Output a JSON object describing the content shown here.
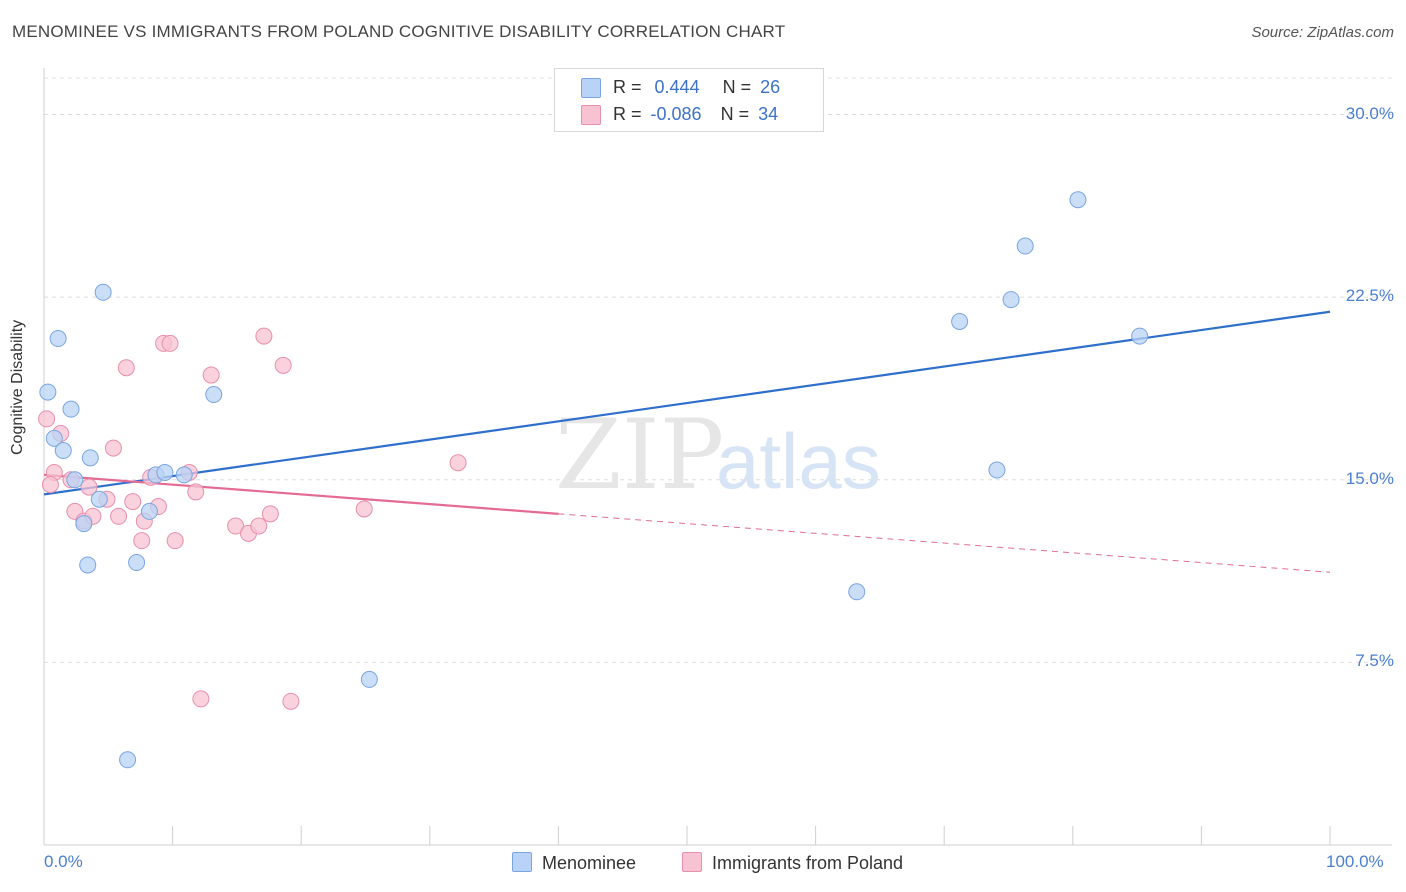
{
  "title": "MENOMINEE VS IMMIGRANTS FROM POLAND COGNITIVE DISABILITY CORRELATION CHART",
  "source": "Source: ZipAtlas.com",
  "watermark": {
    "zip": "ZIP",
    "atlas": "atlas"
  },
  "colors": {
    "blue_fill": "#b8d3f5",
    "blue_stroke": "#7aa5e0",
    "blue_line": "#2f6fcc",
    "pink_fill": "#f7c3d3",
    "pink_stroke": "#e88fad",
    "pink_line": "#e46b93",
    "tick_text": "#4a7fd0"
  },
  "legend": {
    "rows": [
      {
        "r_label": "R =",
        "r_value": "0.444",
        "n_label": "N =",
        "n_value": "26"
      },
      {
        "r_label": "R =",
        "r_value": "-0.086",
        "n_label": "N =",
        "n_value": "34"
      }
    ]
  },
  "bottom_legend": {
    "series1": "Menominee",
    "series2": "Immigrants from Poland"
  },
  "chart_data": {
    "type": "scatter",
    "title": "MENOMINEE VS IMMIGRANTS FROM POLAND COGNITIVE DISABILITY CORRELATION CHART",
    "xlabel": "",
    "ylabel": "Cognitive Disability",
    "xlim": [
      0,
      100
    ],
    "ylim": [
      0,
      31.5
    ],
    "x_tick_labels": [
      "0.0%",
      "100.0%"
    ],
    "y_ticks": [
      7.5,
      15.0,
      22.5,
      30.0
    ],
    "y_tick_labels": [
      "7.5%",
      "15.0%",
      "22.5%",
      "30.0%"
    ],
    "grid": true,
    "series": [
      {
        "name": "Menominee",
        "color": "#b8d3f5",
        "points": [
          {
            "x": 0.3,
            "y": 18.6
          },
          {
            "x": 0.8,
            "y": 16.7
          },
          {
            "x": 1.1,
            "y": 20.8
          },
          {
            "x": 1.5,
            "y": 16.2
          },
          {
            "x": 2.1,
            "y": 17.9
          },
          {
            "x": 2.4,
            "y": 15.0
          },
          {
            "x": 3.1,
            "y": 13.2
          },
          {
            "x": 3.4,
            "y": 11.5
          },
          {
            "x": 3.6,
            "y": 15.9
          },
          {
            "x": 4.3,
            "y": 14.2
          },
          {
            "x": 4.6,
            "y": 22.7
          },
          {
            "x": 6.5,
            "y": 3.5
          },
          {
            "x": 7.2,
            "y": 11.6
          },
          {
            "x": 8.2,
            "y": 13.7
          },
          {
            "x": 8.7,
            "y": 15.2
          },
          {
            "x": 9.4,
            "y": 15.3
          },
          {
            "x": 10.9,
            "y": 15.2
          },
          {
            "x": 13.2,
            "y": 18.5
          },
          {
            "x": 25.3,
            "y": 6.8
          },
          {
            "x": 63.2,
            "y": 10.4
          },
          {
            "x": 71.2,
            "y": 21.5
          },
          {
            "x": 74.1,
            "y": 15.4
          },
          {
            "x": 75.2,
            "y": 22.4
          },
          {
            "x": 76.3,
            "y": 24.6
          },
          {
            "x": 80.4,
            "y": 26.5
          },
          {
            "x": 85.2,
            "y": 20.9
          }
        ],
        "trend": {
          "x": [
            0,
            100
          ],
          "y": [
            14.4,
            21.9
          ]
        }
      },
      {
        "name": "Immigrants from Poland",
        "color": "#f7c3d3",
        "points": [
          {
            "x": 0.2,
            "y": 17.5
          },
          {
            "x": 0.8,
            "y": 15.3
          },
          {
            "x": 1.3,
            "y": 16.9
          },
          {
            "x": 2.1,
            "y": 15.0
          },
          {
            "x": 2.4,
            "y": 13.7
          },
          {
            "x": 3.1,
            "y": 13.3
          },
          {
            "x": 3.5,
            "y": 14.7
          },
          {
            "x": 3.8,
            "y": 13.5
          },
          {
            "x": 4.9,
            "y": 14.2
          },
          {
            "x": 5.4,
            "y": 16.3
          },
          {
            "x": 5.8,
            "y": 13.5
          },
          {
            "x": 6.4,
            "y": 19.6
          },
          {
            "x": 6.9,
            "y": 14.1
          },
          {
            "x": 7.6,
            "y": 12.5
          },
          {
            "x": 7.8,
            "y": 13.3
          },
          {
            "x": 8.3,
            "y": 15.1
          },
          {
            "x": 8.9,
            "y": 13.9
          },
          {
            "x": 9.3,
            "y": 20.6
          },
          {
            "x": 9.8,
            "y": 20.6
          },
          {
            "x": 10.2,
            "y": 12.5
          },
          {
            "x": 11.3,
            "y": 15.3
          },
          {
            "x": 11.8,
            "y": 14.5
          },
          {
            "x": 12.2,
            "y": 6.0
          },
          {
            "x": 13.0,
            "y": 19.3
          },
          {
            "x": 14.9,
            "y": 13.1
          },
          {
            "x": 15.9,
            "y": 12.8
          },
          {
            "x": 16.7,
            "y": 13.1
          },
          {
            "x": 17.1,
            "y": 20.9
          },
          {
            "x": 17.6,
            "y": 13.6
          },
          {
            "x": 18.6,
            "y": 19.7
          },
          {
            "x": 19.2,
            "y": 5.9
          },
          {
            "x": 24.9,
            "y": 13.8
          },
          {
            "x": 32.2,
            "y": 15.7
          },
          {
            "x": 0.5,
            "y": 14.8
          }
        ],
        "trend": {
          "x": [
            0,
            40,
            100
          ],
          "y": [
            15.2,
            13.6,
            11.2
          ],
          "solid_until_x": 40
        }
      }
    ]
  }
}
